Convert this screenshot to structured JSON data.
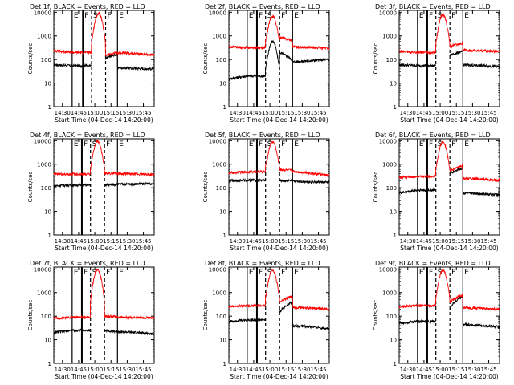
{
  "chart_data": {
    "type": "line",
    "grid": false,
    "yscale": "log",
    "ylim": [
      1,
      12000
    ],
    "xlim": [
      "14:22",
      "15:55"
    ],
    "ylabel": "Counts/sec",
    "xlabel": "Start Time (04-Dec-14 14:20:00)",
    "xticks": [
      "14:30",
      "14:45",
      "15:00",
      "15:15",
      "15:30",
      "15:45"
    ],
    "yticks": [
      "1",
      "10",
      "100",
      "1000",
      "10000"
    ],
    "series_names": [
      "BLACK = Events",
      "RED = LLD"
    ],
    "colors": {
      "events": "#000000",
      "lld": "#ff0000"
    },
    "marker_labels": [
      "E",
      "F",
      "S",
      "F",
      "E"
    ],
    "panels": [
      {
        "title": "Det 1f, BLACK = Events, RED = LLD",
        "markers": {
          "E1": "14:39",
          "F1": "14:49",
          "S": "14:57",
          "F2": "15:10",
          "E2": "15:21"
        },
        "events": {
          "base": [
            60,
            55
          ],
          "peak": 0,
          "post": [
            45,
            40
          ],
          "step": [
            110,
            170
          ]
        },
        "lld": {
          "base": [
            240,
            200
          ],
          "peak": 9000,
          "post": [
            190,
            160
          ],
          "step": [
            150,
            200
          ]
        }
      },
      {
        "title": "Det 2f, BLACK = Events, RED = LLD",
        "markers": {
          "E1": "14:39",
          "F1": "14:48",
          "S": "14:56",
          "F2": "15:09",
          "E2": "15:21"
        },
        "events": {
          "base": [
            15,
            20
          ],
          "peak": 600,
          "post": [
            80,
            100
          ],
          "step": [
            200,
            90
          ]
        },
        "lld": {
          "base": [
            350,
            320
          ],
          "peak": 7000,
          "post": [
            350,
            300
          ],
          "step": [
            900,
            600
          ]
        }
      },
      {
        "title": "Det 3f, BLACK = Events, RED = LLD",
        "markers": {
          "E1": "14:39",
          "F1": "14:48",
          "S": "14:56",
          "F2": "15:09",
          "E2": "15:21"
        },
        "events": {
          "base": [
            60,
            55
          ],
          "peak": 0,
          "post": [
            60,
            50
          ],
          "step": [
            150,
            220
          ]
        },
        "lld": {
          "base": [
            220,
            200
          ],
          "peak": 8000,
          "post": [
            250,
            220
          ],
          "step": [
            350,
            500
          ]
        }
      },
      {
        "title": "Det 4f, BLACK = Events, RED = LLD",
        "markers": {
          "E1": "14:39",
          "F1": "14:48",
          "S": "14:56",
          "F2": "15:09",
          "E2": "15:21"
        },
        "events": {
          "base": [
            120,
            130
          ],
          "peak": 0,
          "post": [
            140,
            150
          ],
          "step": [
            130,
            140
          ]
        },
        "lld": {
          "base": [
            380,
            380
          ],
          "peak": 9500,
          "post": [
            400,
            360
          ],
          "step": [
            400,
            420
          ]
        }
      },
      {
        "title": "Det 5f, BLACK = Events, RED = LLD",
        "markers": {
          "E1": "14:39",
          "F1": "14:48",
          "S": "14:56",
          "F2": "15:09",
          "E2": "15:21"
        },
        "events": {
          "base": [
            200,
            210
          ],
          "peak": 0,
          "post": [
            190,
            170
          ],
          "step": [
            200,
            200
          ]
        },
        "lld": {
          "base": [
            420,
            480
          ],
          "peak": 9000,
          "post": [
            500,
            330
          ],
          "step": [
            600,
            550
          ]
        }
      },
      {
        "title": "Det 6f, BLACK = Events, RED = LLD",
        "markers": {
          "E1": "14:39",
          "F1": "14:48",
          "S": "14:56",
          "F2": "15:09",
          "E2": "15:21"
        },
        "events": {
          "base": [
            60,
            80
          ],
          "peak": 0,
          "post": [
            60,
            50
          ],
          "step": [
            400,
            700
          ]
        },
        "lld": {
          "base": [
            280,
            300
          ],
          "peak": 9000,
          "post": [
            250,
            210
          ],
          "step": [
            500,
            900
          ]
        }
      },
      {
        "title": "Det 7f, BLACK = Events, RED = LLD",
        "markers": {
          "E1": "14:39",
          "F1": "14:48",
          "S": "14:56",
          "F2": "15:09",
          "E2": "15:21"
        },
        "events": {
          "base": [
            20,
            25
          ],
          "peak": 0,
          "post": [
            22,
            18
          ],
          "step": [
            25,
            22
          ]
        },
        "lld": {
          "base": [
            80,
            90
          ],
          "peak": 9500,
          "post": [
            90,
            85
          ],
          "step": [
            100,
            95
          ]
        }
      },
      {
        "title": "Det 8f, BLACK = Events, RED = LLD",
        "markers": {
          "E1": "14:39",
          "F1": "14:48",
          "S": "14:56",
          "F2": "15:09",
          "E2": "15:21"
        },
        "events": {
          "base": [
            60,
            70
          ],
          "peak": 0,
          "post": [
            40,
            30
          ],
          "step": [
            150,
            400
          ]
        },
        "lld": {
          "base": [
            250,
            280
          ],
          "peak": 9000,
          "post": [
            240,
            200
          ],
          "step": [
            400,
            700
          ]
        }
      },
      {
        "title": "Det 9f, BLACK = Events, RED = LLD",
        "markers": {
          "E1": "14:39",
          "F1": "14:48",
          "S": "14:56",
          "F2": "15:09",
          "E2": "15:21"
        },
        "events": {
          "base": [
            50,
            60
          ],
          "peak": 0,
          "post": [
            45,
            35
          ],
          "step": [
            200,
            700
          ]
        },
        "lld": {
          "base": [
            250,
            280
          ],
          "peak": 9000,
          "post": [
            230,
            200
          ],
          "step": [
            400,
            800
          ]
        }
      }
    ]
  }
}
